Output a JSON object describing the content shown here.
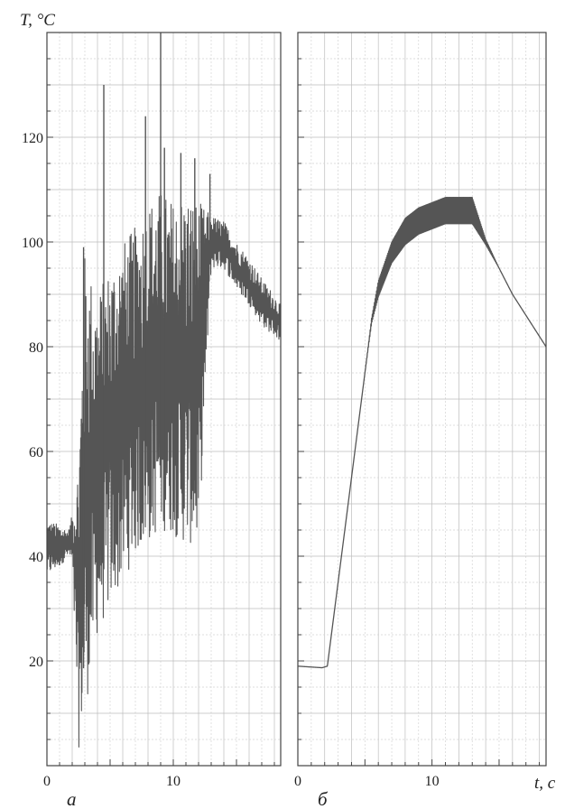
{
  "y_axis_label": "T, °C",
  "x_axis_label": "t, c",
  "chart_data": [
    {
      "type": "line",
      "panel_label": "а",
      "xlim": [
        0,
        18.5
      ],
      "ylim": [
        0,
        140
      ],
      "x_ticks": [
        0,
        10
      ],
      "x_tick_labels": [
        "0",
        "10"
      ],
      "y_ticks": [
        20,
        40,
        60,
        80,
        100,
        120
      ],
      "y_tick_labels": [
        "20",
        "40",
        "60",
        "80",
        "100",
        "120"
      ],
      "grid": true,
      "series": [
        {
          "color": "#555555",
          "style": "heavy oscillation",
          "envelope_x": [
            0,
            1,
            1.7,
            2,
            2.5,
            3,
            4,
            5,
            6,
            7,
            8,
            9,
            10,
            11,
            12,
            13,
            14,
            15,
            16,
            17,
            18,
            18.5
          ],
          "envelope_upper": [
            47,
            46,
            45,
            48,
            60,
            98,
            90,
            96,
            100,
            103,
            108,
            110,
            108,
            110,
            108,
            105,
            104,
            100,
            97,
            93,
            90,
            88
          ],
          "envelope_lower": [
            36,
            38,
            40,
            38,
            3,
            10,
            25,
            30,
            35,
            40,
            42,
            45,
            44,
            42,
            42,
            95,
            95,
            91,
            88,
            84,
            82,
            81
          ],
          "spikes": [
            {
              "x": 2.9,
              "y": 99
            },
            {
              "x": 4.5,
              "y": 130
            },
            {
              "x": 7.8,
              "y": 124
            },
            {
              "x": 9.0,
              "y": 140
            },
            {
              "x": 9.3,
              "y": 118
            },
            {
              "x": 10.6,
              "y": 117
            },
            {
              "x": 11.7,
              "y": 116
            },
            {
              "x": 12.9,
              "y": 113
            }
          ]
        }
      ]
    },
    {
      "type": "line",
      "panel_label": "б",
      "xlim": [
        0,
        18.5
      ],
      "ylim": [
        0,
        140
      ],
      "x_ticks": [
        0,
        10
      ],
      "x_tick_labels": [
        "0",
        "10"
      ],
      "y_ticks": [
        20,
        40,
        60,
        80,
        100,
        120
      ],
      "grid": true,
      "series": [
        {
          "color": "#555555",
          "style": "smooth with small ripple at plateau",
          "x": [
            0,
            1.8,
            2.2,
            3,
            4,
            5,
            5.5,
            6,
            7,
            8,
            9,
            10,
            11,
            12,
            13,
            14,
            15,
            16,
            17,
            18,
            18.5
          ],
          "y": [
            19,
            18.7,
            19,
            35,
            55,
            75,
            85,
            91,
            98,
            102,
            104,
            105,
            106,
            106,
            106,
            100,
            95,
            90,
            86,
            82,
            80
          ],
          "ripple_amplitude": [
            0,
            0,
            0,
            0,
            0,
            0,
            0.5,
            1.5,
            2,
            2.5,
            2.5,
            2.5,
            2.5,
            2.5,
            2.5,
            0.5,
            0,
            0,
            0,
            0,
            0
          ]
        }
      ]
    }
  ]
}
